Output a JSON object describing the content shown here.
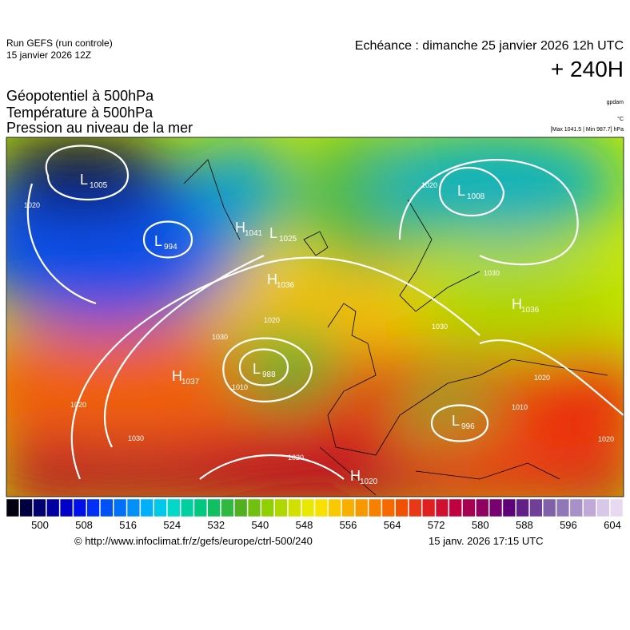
{
  "header": {
    "run": "Run GEFS (run controle)",
    "run_date": "15 janvier 2026 12Z",
    "valid": "Echéance : dimanche 25 janvier 2026 12h UTC",
    "lead": "+ 240H",
    "titles": [
      "Géopotentiel à 500hPa",
      "Température à 500hPa",
      "Pression au niveau de la mer"
    ],
    "unit_geo": "gpdam",
    "unit_temp": "°C",
    "extremes": "[Max 1041.5 | Min 987.7] hPa"
  },
  "map": {
    "centers": [
      {
        "kind": "L",
        "value": "1005"
      },
      {
        "kind": "L",
        "value": "994"
      },
      {
        "kind": "H",
        "value": "1041"
      },
      {
        "kind": "L",
        "value": "1025"
      },
      {
        "kind": "H",
        "value": "1036"
      },
      {
        "kind": "H",
        "value": "1037"
      },
      {
        "kind": "L",
        "value": "988"
      },
      {
        "kind": "L",
        "value": "1008"
      },
      {
        "kind": "H",
        "value": "1036"
      },
      {
        "kind": "L",
        "value": "996"
      },
      {
        "kind": "H",
        "value": "1020"
      }
    ],
    "isobar_labels": [
      "1020",
      "1020",
      "1030",
      "1020",
      "1010",
      "1030",
      "1020",
      "1030",
      "1030",
      "1020",
      "1020",
      "1010",
      "1020"
    ]
  },
  "colorbar": {
    "ticks": [
      500,
      508,
      516,
      524,
      532,
      540,
      548,
      556,
      564,
      572,
      580,
      588,
      596,
      604
    ]
  },
  "footer": {
    "url": "© http://www.infoclimat.fr/z/gefs/europe/ctrl-500/240",
    "generated": "15 janv. 2026 17:15 UTC"
  }
}
